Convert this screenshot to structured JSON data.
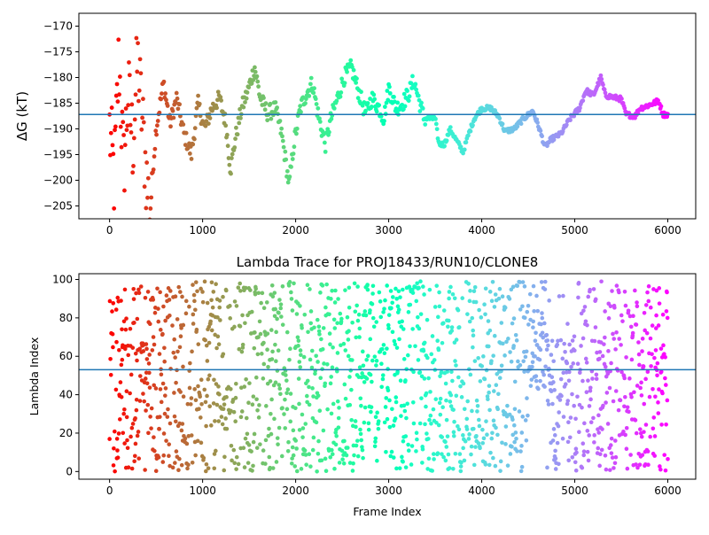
{
  "chart_data": [
    {
      "type": "scatter",
      "title": "",
      "ylabel": "ΔG (kT)",
      "xlim": [
        -330,
        6300
      ],
      "ylim": [
        -207.5,
        -167.5
      ],
      "xticks": [
        0,
        1000,
        2000,
        3000,
        4000,
        5000,
        6000
      ],
      "yticks": [
        -170,
        -175,
        -180,
        -185,
        -190,
        -195,
        -200,
        -205
      ],
      "hline": -187.2,
      "hline_color": "#1f77b4",
      "colormap": "rainbow (reversed: red at frame 0, violet at frame 6000)",
      "grid": false,
      "trace_control_points": [
        [
          0,
          -190
        ],
        [
          50,
          -200
        ],
        [
          100,
          -176
        ],
        [
          150,
          -198
        ],
        [
          200,
          -183
        ],
        [
          250,
          -193
        ],
        [
          300,
          -177
        ],
        [
          350,
          -188
        ],
        [
          400,
          -200
        ],
        [
          430,
          -206
        ],
        [
          500,
          -190
        ],
        [
          580,
          -181
        ],
        [
          650,
          -189
        ],
        [
          720,
          -184
        ],
        [
          800,
          -191
        ],
        [
          880,
          -195
        ],
        [
          950,
          -185
        ],
        [
          1020,
          -190
        ],
        [
          1100,
          -186
        ],
        [
          1180,
          -184
        ],
        [
          1250,
          -189
        ],
        [
          1300,
          -198
        ],
        [
          1350,
          -192
        ],
        [
          1420,
          -186
        ],
        [
          1480,
          -183
        ],
        [
          1560,
          -178
        ],
        [
          1620,
          -184
        ],
        [
          1700,
          -187
        ],
        [
          1780,
          -186
        ],
        [
          1850,
          -191
        ],
        [
          1930,
          -201
        ],
        [
          1980,
          -193
        ],
        [
          2050,
          -186
        ],
        [
          2120,
          -183
        ],
        [
          2180,
          -181
        ],
        [
          2250,
          -188
        ],
        [
          2320,
          -193
        ],
        [
          2380,
          -188
        ],
        [
          2450,
          -184
        ],
        [
          2520,
          -180
        ],
        [
          2600,
          -178
        ],
        [
          2680,
          -183
        ],
        [
          2750,
          -187
        ],
        [
          2820,
          -184
        ],
        [
          2900,
          -186
        ],
        [
          2950,
          -188
        ],
        [
          3000,
          -182
        ],
        [
          3080,
          -186
        ],
        [
          3150,
          -185
        ],
        [
          3220,
          -183
        ],
        [
          3270,
          -180.5
        ],
        [
          3320,
          -184
        ],
        [
          3380,
          -188
        ],
        [
          3500,
          -188
        ],
        [
          3540,
          -193
        ],
        [
          3600,
          -193
        ],
        [
          3660,
          -190
        ],
        [
          3720,
          -192
        ],
        [
          3800,
          -194.5
        ],
        [
          3860,
          -191
        ],
        [
          3920,
          -188
        ],
        [
          4000,
          -186
        ],
        [
          4100,
          -186
        ],
        [
          4180,
          -187.5
        ],
        [
          4250,
          -190.5
        ],
        [
          4350,
          -190
        ],
        [
          4450,
          -188
        ],
        [
          4550,
          -186.5
        ],
        [
          4620,
          -190
        ],
        [
          4680,
          -193.5
        ],
        [
          4750,
          -192
        ],
        [
          4850,
          -191
        ],
        [
          4950,
          -188
        ],
        [
          5050,
          -186
        ],
        [
          5120,
          -182.5
        ],
        [
          5200,
          -183.5
        ],
        [
          5280,
          -180
        ],
        [
          5330,
          -183.5
        ],
        [
          5500,
          -184.2
        ],
        [
          5550,
          -187.2
        ],
        [
          5650,
          -187.5
        ],
        [
          5700,
          -186
        ],
        [
          5780,
          -185.5
        ],
        [
          5850,
          -185
        ],
        [
          5900,
          -184.5
        ],
        [
          5950,
          -187.2
        ],
        [
          6000,
          -187.2
        ]
      ]
    },
    {
      "type": "scatter",
      "title": "Lambda Trace for PROJ18433/RUN10/CLONE8",
      "xlabel": "Frame Index",
      "ylabel": "Lambda Index",
      "xlim": [
        -330,
        6300
      ],
      "ylim": [
        -4,
        103
      ],
      "xticks": [
        0,
        1000,
        2000,
        3000,
        4000,
        5000,
        6000
      ],
      "yticks": [
        0,
        20,
        40,
        60,
        80,
        100
      ],
      "hline": 53,
      "hline_color": "#1f77b4",
      "colormap": "rainbow (reversed: red at frame 0, violet at frame 6000)",
      "grid": false,
      "value_range": [
        0,
        99
      ],
      "frame_count": 6000
    }
  ]
}
